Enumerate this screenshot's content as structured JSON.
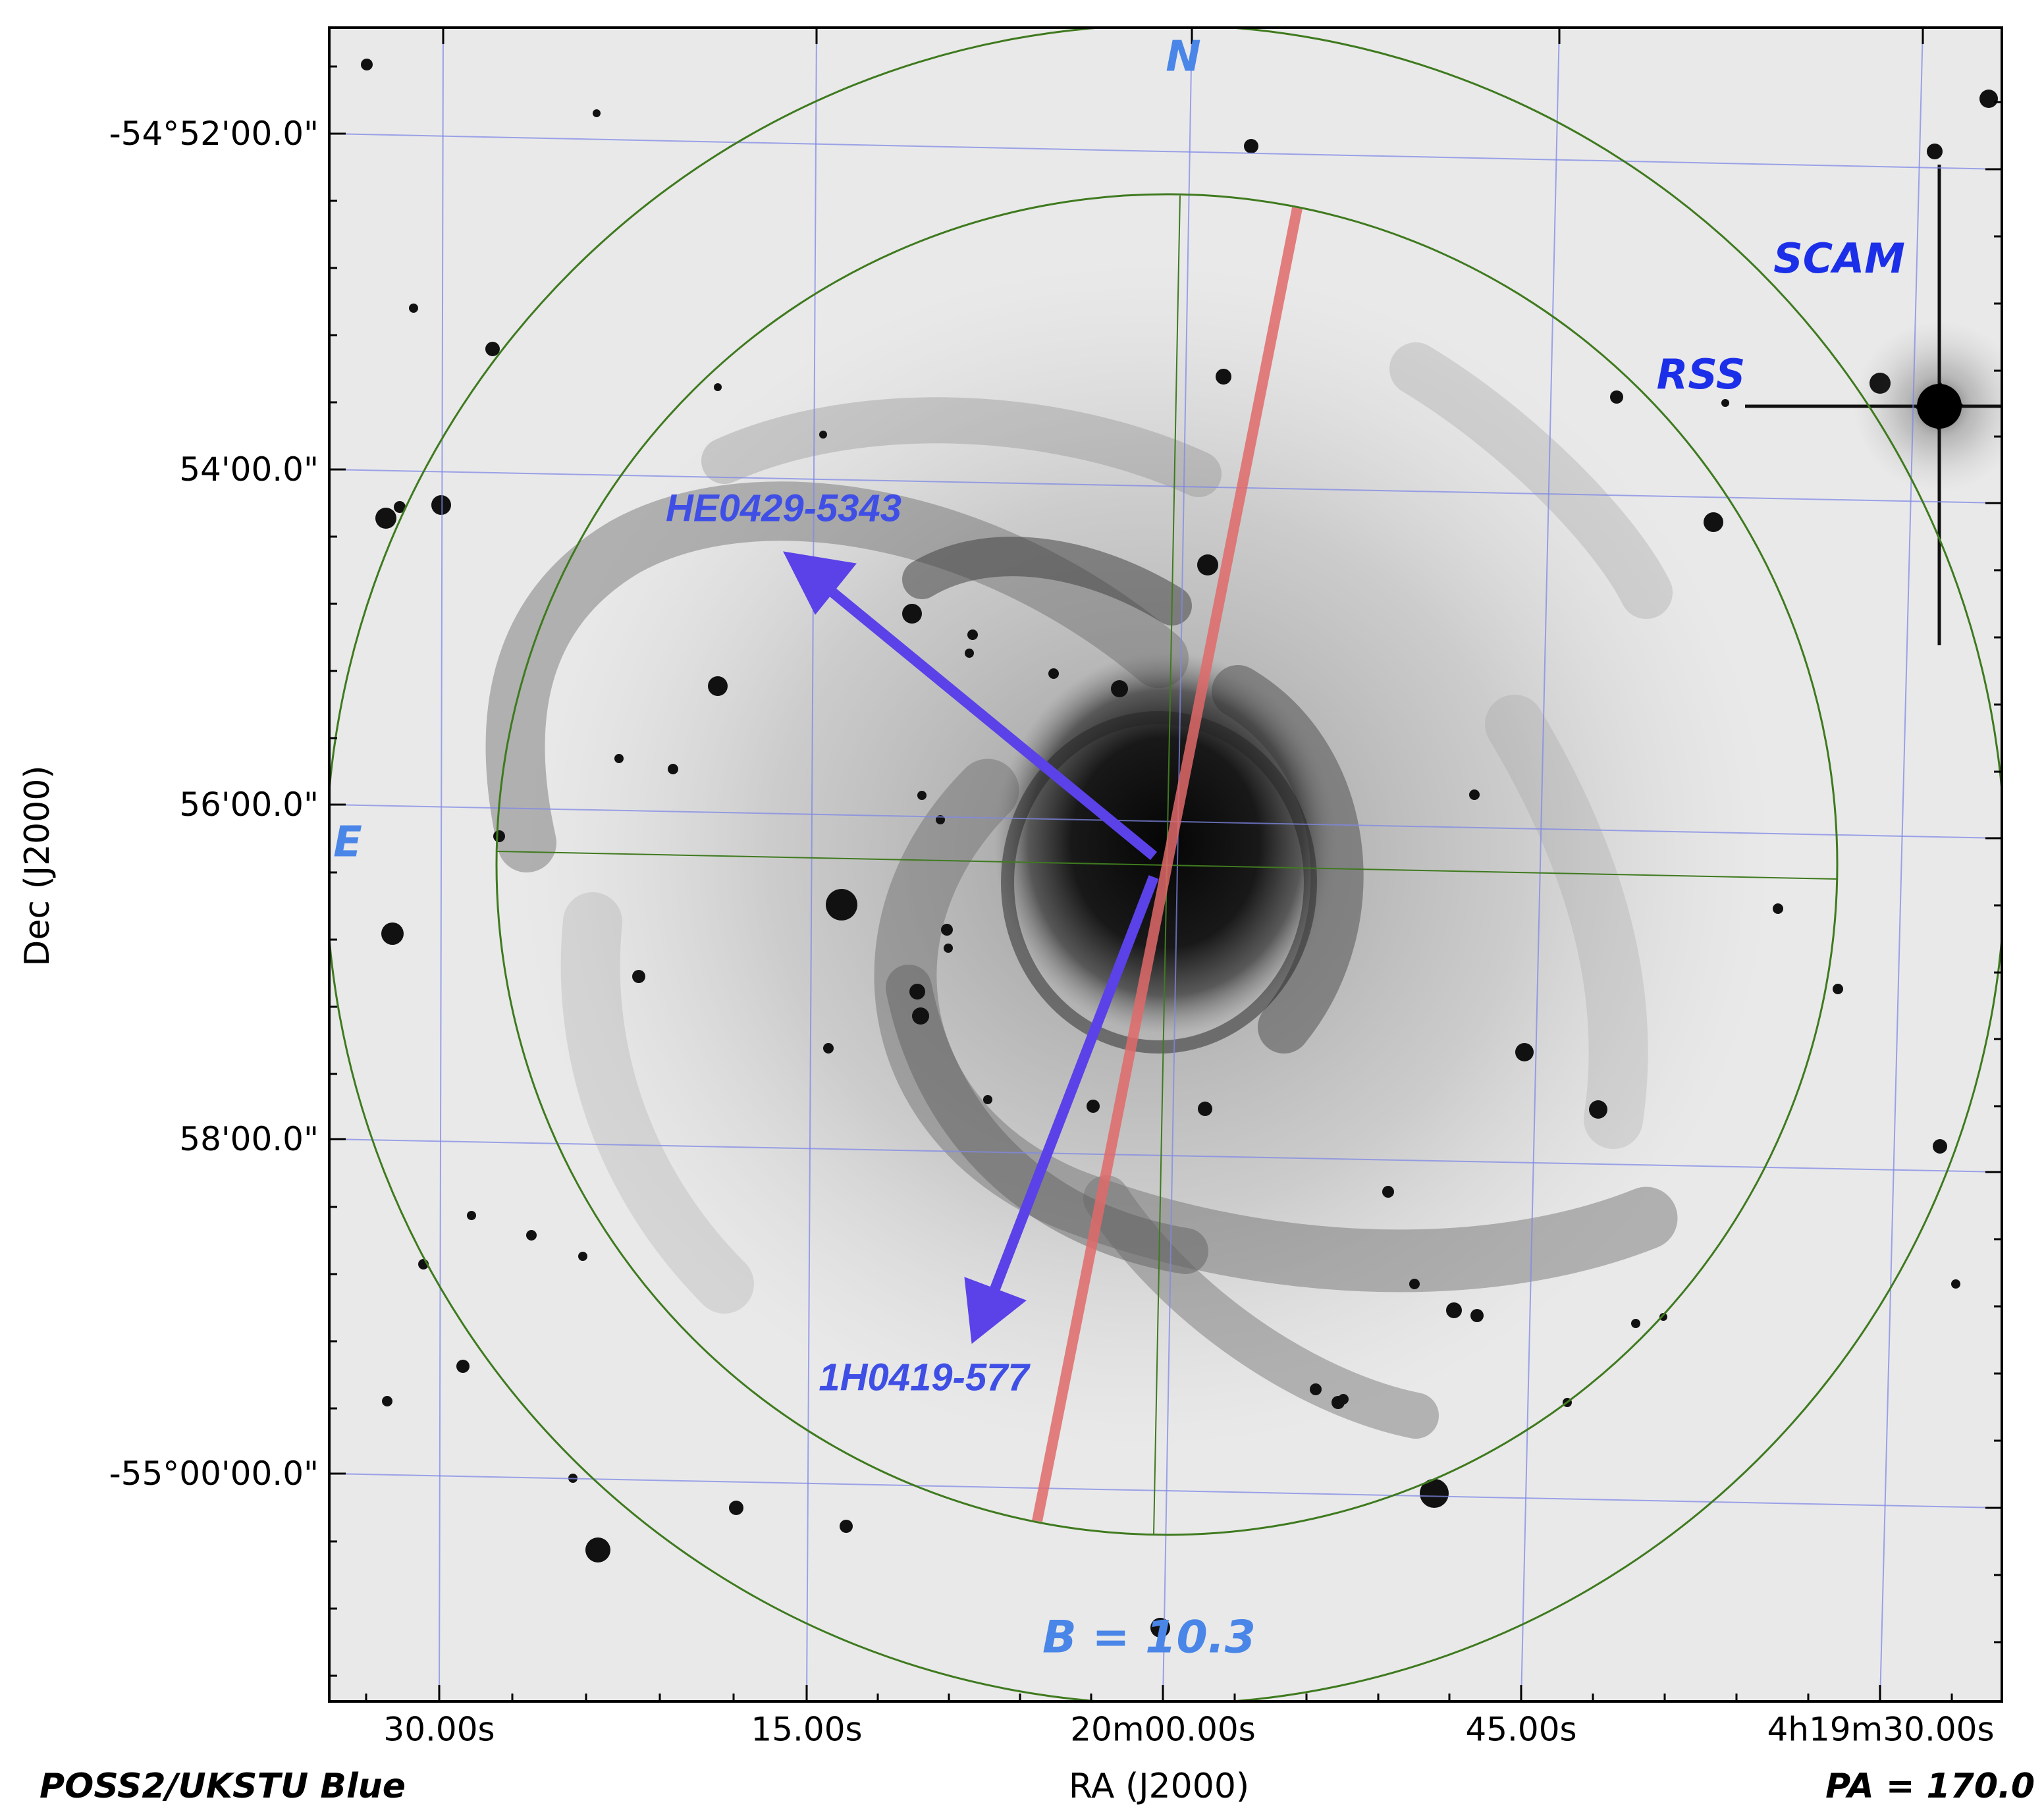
{
  "chart": {
    "survey_label": "POSS2/UKSTU Blue",
    "pa_label": "PA = 170.0",
    "x_axis_label": "RA (J2000)",
    "y_axis_label": "Dec (J2000)",
    "x_ticks": [
      "30.00s",
      "15.00s",
      "20m00.00s",
      "45.00s",
      "4h19m30.00s"
    ],
    "y_ticks": [
      "-54°52'00.0\"",
      "54'00.0\"",
      "56'00.0\"",
      "58'00.0\"",
      "-55°00'00.0\""
    ],
    "compass": {
      "north": "N",
      "east": "E"
    },
    "fields": {
      "outer": "SCAM",
      "inner": "RSS"
    },
    "sources": [
      {
        "name": "HE0429-5343"
      },
      {
        "name": "1H0419-577"
      }
    ],
    "magnitude_label": "B = 10.3",
    "colors": {
      "grid": "#7f88e6",
      "field_circle": "#3f7a1f",
      "slit": "#e06a6a",
      "arrow": "#5a42e8",
      "compass": "#4a86e8",
      "instrument": "#1c2fe8",
      "source_label": "#3f4fe6"
    }
  }
}
